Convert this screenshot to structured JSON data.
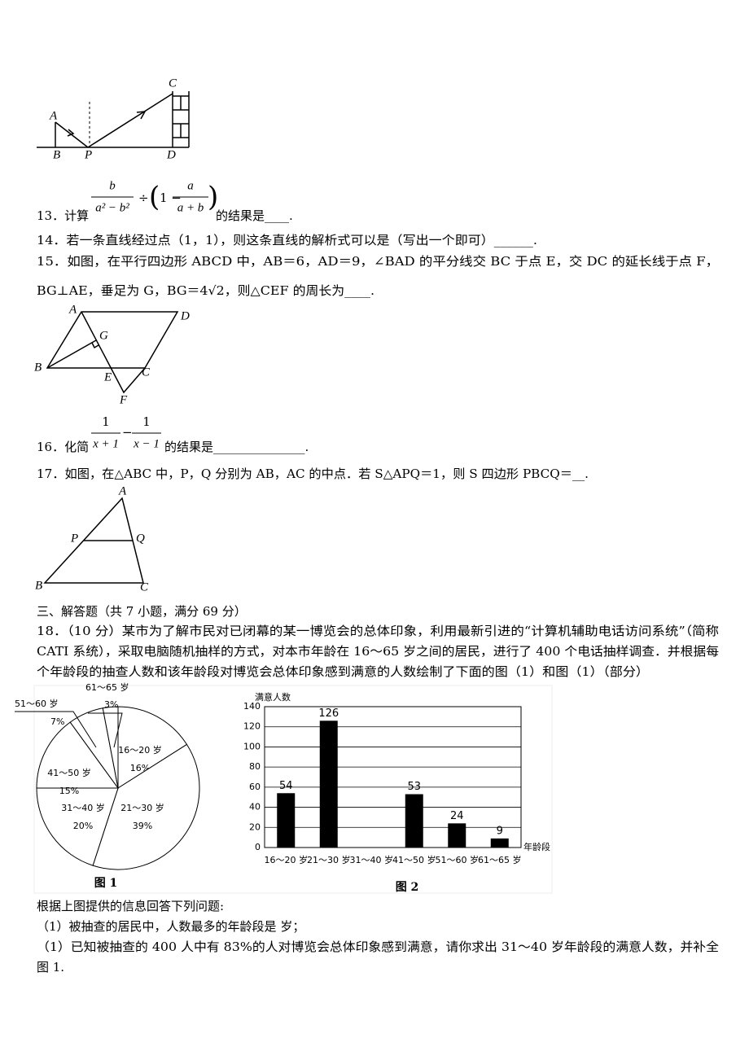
{
  "figure_q12": {
    "labels": [
      "C",
      "A",
      "B",
      "P",
      "D"
    ]
  },
  "q13": {
    "prefix": "13．计算",
    "fraction1": {
      "num": "b",
      "den": "a² − b²"
    },
    "operator": "÷",
    "open": "(",
    "one_minus": "1 −",
    "fraction2": {
      "num": "a",
      "den": "a + b"
    },
    "close": ")",
    "suffix": "的结果是____."
  },
  "q14": "14．若一条直线经过点（1，1），则这条直线的解析式可以是（写出一个即可）______.",
  "q15": {
    "lines": [
      "15．如图，在平行四边形 ABCD 中，AB＝6，AD＝9，∠BAD 的平分线交 BC 于点 E，交 DC 的延长线于点 F，",
      "BG⊥AE，垂足为 G，BG＝4√2，则△CEF 的周长为____."
    ],
    "labels": [
      "A",
      "D",
      "G",
      "B",
      "E",
      "C",
      "F"
    ]
  },
  "q16": {
    "prefix": "16．化简",
    "fraction1": {
      "num": "1",
      "den": "x + 1"
    },
    "operator": "−",
    "fraction2": {
      "num": "1",
      "den": "x − 1"
    },
    "suffix": "的结果是_______________."
  },
  "q17": {
    "text": "17．如图，在△ABC 中，P，Q 分别为 AB，AC 的中点．若 S△APQ＝1，则 S 四边形 PBCQ＝__.",
    "labels": [
      "A",
      "P",
      "Q",
      "B",
      "C"
    ]
  },
  "section": "三、解答题（共 7 小题，满分 69 分）",
  "q18": {
    "lines": [
      "18．（10 分）某市为了解市民对已闭幕的某一博览会的总体印象，利用最新引进的“计算机辅助电话访问系统”（简称",
      "CATI 系统），采取电脑随机抽样的方式，对本市年龄在 16～65 岁之间的居民，进行了 400 个电话抽样调查．并根据每",
      "个年龄段的抽查人数和该年龄段对博览会总体印象感到满意的人数绘制了下面的图（1）和图（1）（部分）"
    ]
  },
  "figure1": {
    "type": "pie",
    "caption": "图 1",
    "categories": [
      "16～20 岁",
      "21～30 岁",
      "31～40 岁",
      "41～50 岁",
      "51～60 岁",
      "61～65 岁"
    ],
    "values": [
      16,
      39,
      20,
      15,
      7,
      3
    ],
    "value_labels": [
      "16%",
      "39%",
      "20%",
      "15%",
      "7%",
      "3%"
    ]
  },
  "figure2": {
    "type": "bar",
    "caption": "图 2",
    "y_label": "满意人数",
    "x_label": "年龄段",
    "categories": [
      "16～20 岁",
      "21～30 岁",
      "31～40 岁",
      "41～50 岁",
      "51～60 岁",
      "61～65 岁"
    ],
    "values": [
      54,
      126,
      null,
      53,
      24,
      9
    ],
    "color": "#000000",
    "ylim": [
      0,
      140
    ],
    "yticks": [
      0,
      20,
      40,
      60,
      80,
      100,
      120,
      140
    ],
    "grid": true
  },
  "questions": [
    "根据上图提供的信息回答下列问题:",
    "（1）被抽查的居民中，人数最多的年龄段是              岁；",
    "（1）已知被抽查的 400 人中有 83%的人对博览会总体印象感到满意，请你求出 31～40 岁年龄段的满意人数，并补全",
    "图 1."
  ]
}
